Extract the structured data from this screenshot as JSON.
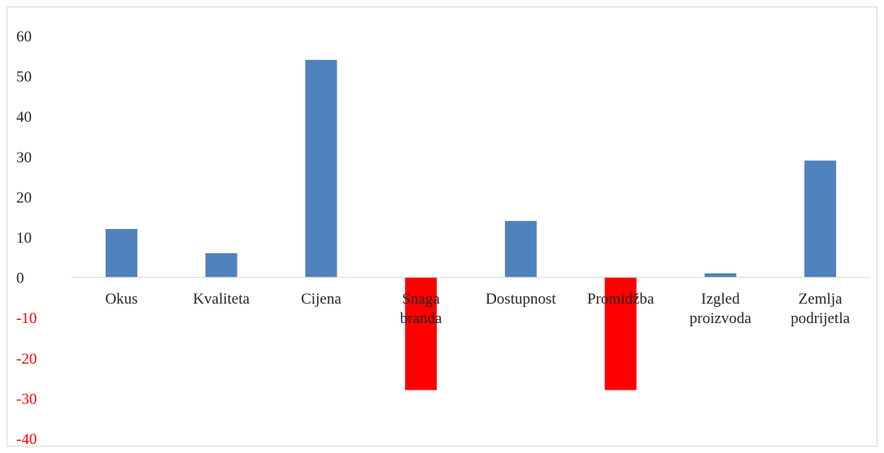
{
  "chart_data": {
    "type": "bar",
    "title": "",
    "xlabel": "",
    "ylabel": "",
    "ylim": [
      -40,
      60
    ],
    "yticks": [
      60,
      50,
      40,
      30,
      20,
      10,
      0,
      -10,
      -20,
      -30,
      -40
    ],
    "grid": false,
    "legend": "none",
    "categories": [
      [
        "Okus"
      ],
      [
        "Kvaliteta"
      ],
      [
        "Cijena"
      ],
      [
        "Snaga",
        "branda"
      ],
      [
        "Dostupnost"
      ],
      [
        "Promidžba"
      ],
      [
        "Izgled",
        "proizvoda"
      ],
      [
        "Zemlja",
        "podrijetla"
      ]
    ],
    "values": [
      12,
      6,
      54,
      -28,
      14,
      -28,
      1,
      29
    ],
    "colors": {
      "positive_bar": "#4f81bd",
      "negative_bar": "#ff0000",
      "positive_tick": "#262626",
      "negative_tick": "#ff0000",
      "axis": "#d9d9d9"
    }
  }
}
